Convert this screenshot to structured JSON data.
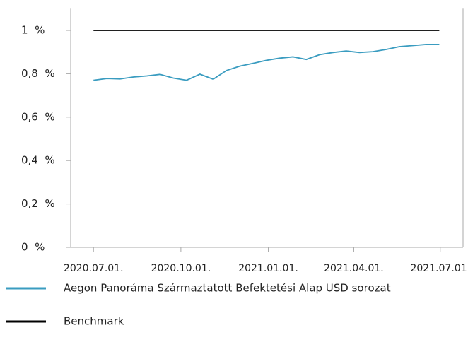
{
  "chart_data": {
    "type": "line",
    "x": [
      "2020.07.01.",
      "2020.07.15.",
      "2020.07.29.",
      "2020.08.12.",
      "2020.08.26.",
      "2020.09.09.",
      "2020.09.23.",
      "2020.10.07.",
      "2020.10.21.",
      "2020.11.04.",
      "2020.11.18.",
      "2020.12.02.",
      "2020.12.16.",
      "2020.12.30.",
      "2021.01.13.",
      "2021.01.27.",
      "2021.02.10.",
      "2021.02.24.",
      "2021.03.10.",
      "2021.03.24.",
      "2021.04.07.",
      "2021.04.21.",
      "2021.05.05.",
      "2021.05.19.",
      "2021.06.02.",
      "2021.06.16.",
      "2021.06.30."
    ],
    "series": [
      {
        "name": "Aegon Panoráma Származtatott Befektetési Alap USD sorozat",
        "color": "#3a9cc0",
        "values": [
          0.77,
          0.778,
          0.776,
          0.785,
          0.79,
          0.797,
          0.78,
          0.77,
          0.798,
          0.775,
          0.815,
          0.835,
          0.848,
          0.862,
          0.872,
          0.878,
          0.866,
          0.888,
          0.898,
          0.905,
          0.898,
          0.902,
          0.912,
          0.925,
          0.93,
          0.935,
          0.935
        ]
      },
      {
        "name": "Benchmark",
        "color": "#000000",
        "values": [
          1,
          1,
          1,
          1,
          1,
          1,
          1,
          1,
          1,
          1,
          1,
          1,
          1,
          1,
          1,
          1,
          1,
          1,
          1,
          1,
          1,
          1,
          1,
          1,
          1,
          1,
          1
        ]
      }
    ],
    "xlim": [
      "2020.06.07.",
      "2021.07.25."
    ],
    "xticks": [
      "2020.07.01.",
      "2020.10.01.",
      "2021.01.01.",
      "2021.04.01.",
      "2021.07.01."
    ],
    "ylim": [
      0,
      1.1
    ],
    "yticks": [
      {
        "value": 0,
        "label": "0  %"
      },
      {
        "value": 0.2,
        "label": "0,2  %"
      },
      {
        "value": 0.4,
        "label": "0,4  %"
      },
      {
        "value": 0.6,
        "label": "0,6  %"
      },
      {
        "value": 0.8,
        "label": "0,8  %"
      },
      {
        "value": 1,
        "label": "1  %"
      }
    ],
    "legend": "bottom"
  }
}
